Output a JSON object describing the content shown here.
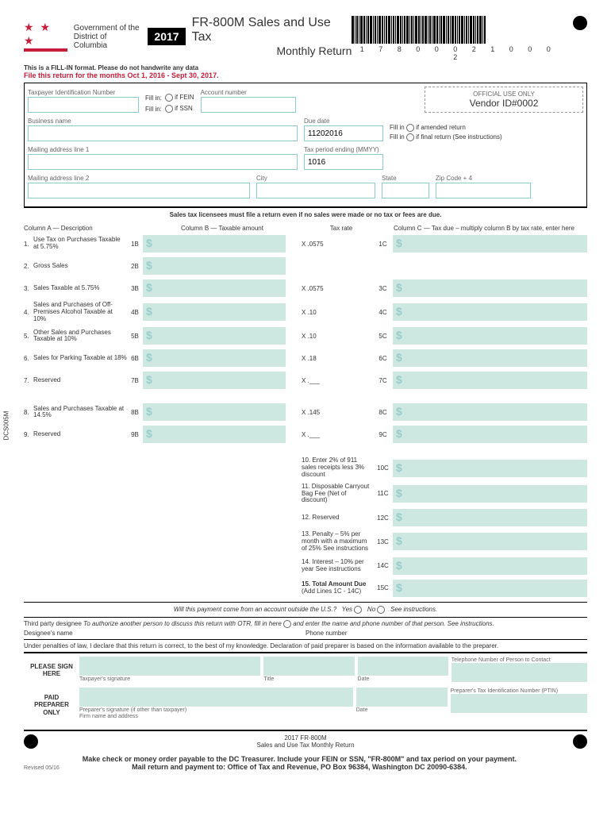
{
  "header": {
    "gov_line1": "Government of the",
    "gov_line2": "District of Columbia",
    "year": "2017",
    "form_title": "FR-800M Sales and Use Tax",
    "form_subtitle": "Monthly Return",
    "fillin_notice": "This is a FILL-IN format. Please do not handwrite any data",
    "red_notice": "File this return for the months Oct 1, 2016 - Sept 30, 2017.",
    "barcode_digits": "1 7 8 0 0 0 2 1 0 0 0 2"
  },
  "top_fields": {
    "taxpayer_id_label": "Taxpayer Identification Number",
    "account_label": "Account number",
    "fillin_text": "Fill in:",
    "if_fein": "if FEIN",
    "if_ssn": "if SSN",
    "business_label": "Business name",
    "mailing1_label": "Mailing address line 1",
    "mailing2_label": "Mailing address line  2",
    "city_label": "City",
    "state_label": "State",
    "zip_label": "Zip Code + 4",
    "official_label": "OFFICIAL USE ONLY",
    "vendor_id": "Vendor ID#0002",
    "due_date_label": "Due date",
    "due_date_value": "11202016",
    "tax_period_label": "Tax period ending (MMYY)",
    "tax_period_value": "1016",
    "fill_in_amended": "if amended return",
    "fill_in_final": "if final return (See instructions)",
    "fill_in": "Fill in"
  },
  "notice": "Sales tax licensees must file a return even if no sales were made or no tax or fees are due.",
  "columns": {
    "col_a": "Column A — Description",
    "col_b": "Column B — Taxable amount",
    "col_rate": "Tax rate",
    "col_c": "Column C — Tax due – multiply column B by tax rate, enter here"
  },
  "rows": [
    {
      "num": "1.",
      "desc": "Use Tax on Purchases Taxable at 5.75%",
      "b": "1B",
      "rate": "X .0575",
      "c": "1C"
    },
    {
      "num": "2.",
      "desc": "Gross Sales",
      "b": "2B",
      "rate": "",
      "c": ""
    },
    {
      "num": "3.",
      "desc": "Sales Taxable at 5.75%",
      "b": "3B",
      "rate": "X .0575",
      "c": "3C"
    },
    {
      "num": "4.",
      "desc": "Sales and Purchases of Off-Premises Alcohol Taxable at 10%",
      "b": "4B",
      "rate": "X .10",
      "c": "4C"
    },
    {
      "num": "5.",
      "desc": "Other Sales and Purchases Taxable at 10%",
      "b": "5B",
      "rate": "X .10",
      "c": "5C"
    },
    {
      "num": "6.",
      "desc": "Sales for Parking Taxable at 18%",
      "b": "6B",
      "rate": "X .18",
      "c": "6C"
    },
    {
      "num": "7.",
      "desc": "Reserved",
      "b": "7B",
      "rate": "X .___",
      "c": "7C"
    },
    {
      "num": "8.",
      "desc": "Sales and Purchases Taxable at 14.5%",
      "b": "8B",
      "rate": "X .145",
      "c": "8C"
    },
    {
      "num": "9.",
      "desc": "Reserved",
      "b": "9B",
      "rate": "X .___",
      "c": "9C"
    }
  ],
  "lower_rows": [
    {
      "num": "10.",
      "desc": "Enter 2% of 911 sales receipts less 3% discount",
      "c": "10C"
    },
    {
      "num": "11.",
      "desc": "Disposable Carryout Bag Fee (Net of discount)",
      "c": "11C"
    },
    {
      "num": "12.",
      "desc": "Reserved",
      "c": "12C"
    },
    {
      "num": "13.",
      "desc": "Penalty – 5% per month with a maximum of 25% See instructions",
      "c": "13C"
    },
    {
      "num": "14.",
      "desc": "Interest – 10% per year See instructions",
      "c": "14C"
    }
  ],
  "total_row": {
    "num": "15.",
    "desc": "Total Amount Due",
    "sub": "(Add Lines 1C - 14C)",
    "c": "15C"
  },
  "payment_q": {
    "text": "Will this payment come from an account outside the U.S.?",
    "yes": "Yes",
    "no": "No",
    "see": "See instructions."
  },
  "third_party": {
    "label": "Third party designee",
    "text": "To authorize another person to discuss this return with OTR, fill  in here",
    "text2": "and enter the name and phone number of that person. See instructions.",
    "designee_label": "Designee's name",
    "phone_label": "Phone number"
  },
  "penalties": "Under penalties of law, I declare that this return is correct, to the best of my knowledge. Declaration of paid preparer is based on the information available to the preparer.",
  "signature": {
    "please_sign": "PLEASE SIGN HERE",
    "paid_preparer": "PAID PREPARER ONLY",
    "taxpayer_sig": "Taxpayer's signature",
    "title": "Title",
    "date": "Date",
    "telephone": "Telephone Number of Person to Contact",
    "preparer_sig": "Preparer's signature (if other than taxpayer)",
    "firm": "Firm name and address",
    "ptin": "Preparer's Tax Identification Number (PTIN)"
  },
  "footer": {
    "form_id": "2017 FR-800M",
    "form_name": "Sales and Use Tax Monthly Return",
    "revised": "Revised 05/16",
    "line1": "Make check or money order payable to the DC Treasurer. Include your FEIN or SSN, \"FR-800M\" and tax period on your payment.",
    "line2": "Mail return and payment to: Office of Tax and Revenue, PO Box 96384, Washington DC 20090-6384."
  },
  "side_code": "DCS005M",
  "colors": {
    "mint": "#cce8e0",
    "red": "#c41e3a",
    "dollar": "#9cc"
  }
}
